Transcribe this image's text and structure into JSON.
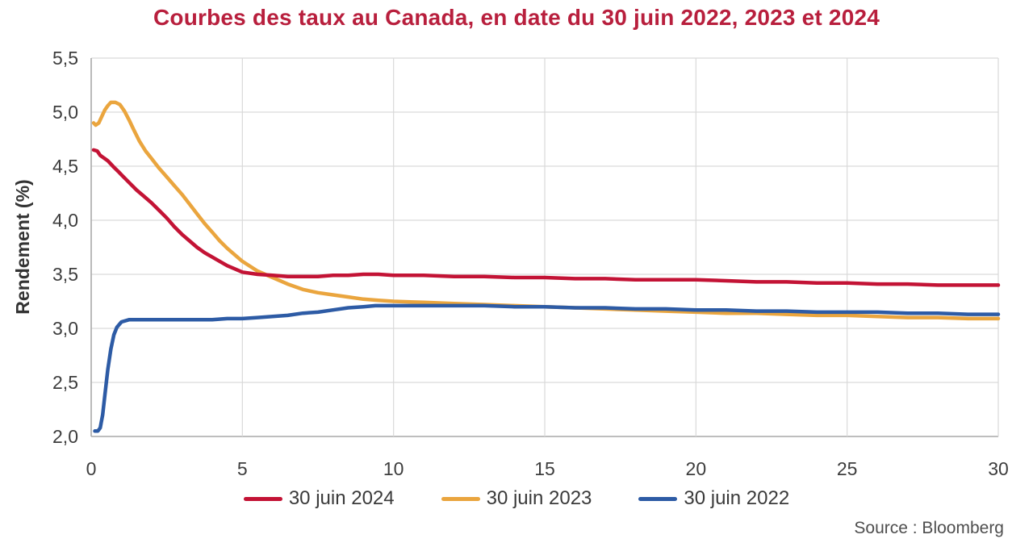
{
  "page": {
    "source": "Source : Bloomberg"
  },
  "chart_data": {
    "type": "line",
    "title": "Courbes des taux au Canada, en date du 30 juin 2022, 2023 et 2024",
    "xlabel": "",
    "ylabel": "Rendement (%)",
    "xlim": [
      0,
      30
    ],
    "ylim": [
      2.0,
      5.5
    ],
    "x_ticks": [
      0,
      5,
      10,
      15,
      20,
      25,
      30
    ],
    "x_tick_labels": [
      "0",
      "5",
      "10",
      "15",
      "20",
      "25",
      "30"
    ],
    "y_ticks": [
      2.0,
      2.5,
      3.0,
      3.5,
      4.0,
      4.5,
      5.0,
      5.5
    ],
    "y_tick_labels": [
      "2,0",
      "2,5",
      "3,0",
      "3,5",
      "4,0",
      "4,5",
      "5,0",
      "5,5"
    ],
    "grid": true,
    "legend_position": "bottom",
    "colors": {
      "title": "#b81f3d",
      "grid": "#d9d9d9",
      "axis": "#a9a9a9",
      "tick_text": "#3d3d3d",
      "axis_title_text": "#333333",
      "legend_text": "#3a3a3a",
      "source_text": "#4e4e4e"
    },
    "series": [
      {
        "name": "30 juin 2024",
        "color": "#c31335",
        "points": [
          [
            0.08,
            4.65
          ],
          [
            0.2,
            4.64
          ],
          [
            0.3,
            4.6
          ],
          [
            0.45,
            4.57
          ],
          [
            0.55,
            4.55
          ],
          [
            0.65,
            4.52
          ],
          [
            0.75,
            4.49
          ],
          [
            0.9,
            4.45
          ],
          [
            1,
            4.42
          ],
          [
            1.25,
            4.35
          ],
          [
            1.5,
            4.28
          ],
          [
            1.75,
            4.22
          ],
          [
            2,
            4.16
          ],
          [
            2.25,
            4.09
          ],
          [
            2.5,
            4.02
          ],
          [
            2.75,
            3.94
          ],
          [
            3,
            3.87
          ],
          [
            3.25,
            3.81
          ],
          [
            3.5,
            3.75
          ],
          [
            3.75,
            3.7
          ],
          [
            4,
            3.66
          ],
          [
            4.25,
            3.62
          ],
          [
            4.5,
            3.58
          ],
          [
            4.75,
            3.55
          ],
          [
            5,
            3.52
          ],
          [
            5.5,
            3.5
          ],
          [
            6,
            3.49
          ],
          [
            6.5,
            3.48
          ],
          [
            7,
            3.48
          ],
          [
            7.5,
            3.48
          ],
          [
            8,
            3.49
          ],
          [
            8.5,
            3.49
          ],
          [
            9,
            3.5
          ],
          [
            9.5,
            3.5
          ],
          [
            10,
            3.49
          ],
          [
            11,
            3.49
          ],
          [
            12,
            3.48
          ],
          [
            13,
            3.48
          ],
          [
            14,
            3.47
          ],
          [
            15,
            3.47
          ],
          [
            16,
            3.46
          ],
          [
            17,
            3.46
          ],
          [
            18,
            3.45
          ],
          [
            19,
            3.45
          ],
          [
            20,
            3.45
          ],
          [
            21,
            3.44
          ],
          [
            22,
            3.43
          ],
          [
            23,
            3.43
          ],
          [
            24,
            3.42
          ],
          [
            25,
            3.42
          ],
          [
            26,
            3.41
          ],
          [
            27,
            3.41
          ],
          [
            28,
            3.4
          ],
          [
            29,
            3.4
          ],
          [
            30,
            3.4
          ]
        ]
      },
      {
        "name": "30 juin 2023",
        "color": "#eaa53e",
        "points": [
          [
            0.08,
            4.9
          ],
          [
            0.15,
            4.88
          ],
          [
            0.25,
            4.9
          ],
          [
            0.35,
            4.96
          ],
          [
            0.45,
            5.02
          ],
          [
            0.55,
            5.06
          ],
          [
            0.65,
            5.09
          ],
          [
            0.8,
            5.09
          ],
          [
            0.95,
            5.07
          ],
          [
            1.1,
            5.01
          ],
          [
            1.25,
            4.93
          ],
          [
            1.4,
            4.84
          ],
          [
            1.6,
            4.73
          ],
          [
            1.8,
            4.64
          ],
          [
            2,
            4.57
          ],
          [
            2.25,
            4.48
          ],
          [
            2.5,
            4.4
          ],
          [
            2.75,
            4.32
          ],
          [
            3,
            4.24
          ],
          [
            3.25,
            4.15
          ],
          [
            3.5,
            4.06
          ],
          [
            3.75,
            3.97
          ],
          [
            4,
            3.89
          ],
          [
            4.25,
            3.81
          ],
          [
            4.5,
            3.74
          ],
          [
            4.75,
            3.68
          ],
          [
            5,
            3.62
          ],
          [
            5.5,
            3.53
          ],
          [
            6,
            3.47
          ],
          [
            6.5,
            3.41
          ],
          [
            7,
            3.36
          ],
          [
            7.5,
            3.33
          ],
          [
            8,
            3.31
          ],
          [
            8.5,
            3.29
          ],
          [
            9,
            3.27
          ],
          [
            9.5,
            3.26
          ],
          [
            10,
            3.25
          ],
          [
            11,
            3.24
          ],
          [
            12,
            3.23
          ],
          [
            13,
            3.22
          ],
          [
            14,
            3.21
          ],
          [
            15,
            3.2
          ],
          [
            16,
            3.19
          ],
          [
            17,
            3.18
          ],
          [
            18,
            3.17
          ],
          [
            19,
            3.16
          ],
          [
            20,
            3.15
          ],
          [
            21,
            3.14
          ],
          [
            22,
            3.14
          ],
          [
            23,
            3.13
          ],
          [
            24,
            3.12
          ],
          [
            25,
            3.12
          ],
          [
            26,
            3.11
          ],
          [
            27,
            3.1
          ],
          [
            28,
            3.1
          ],
          [
            29,
            3.09
          ],
          [
            30,
            3.09
          ]
        ]
      },
      {
        "name": "30 juin 2022",
        "color": "#2d5ba5",
        "points": [
          [
            0.12,
            2.05
          ],
          [
            0.22,
            2.05
          ],
          [
            0.3,
            2.08
          ],
          [
            0.38,
            2.2
          ],
          [
            0.45,
            2.38
          ],
          [
            0.55,
            2.62
          ],
          [
            0.65,
            2.81
          ],
          [
            0.75,
            2.94
          ],
          [
            0.85,
            3.01
          ],
          [
            1,
            3.06
          ],
          [
            1.25,
            3.08
          ],
          [
            1.5,
            3.08
          ],
          [
            2,
            3.08
          ],
          [
            2.5,
            3.08
          ],
          [
            3,
            3.08
          ],
          [
            3.5,
            3.08
          ],
          [
            4,
            3.08
          ],
          [
            4.5,
            3.09
          ],
          [
            5,
            3.09
          ],
          [
            5.5,
            3.1
          ],
          [
            6,
            3.11
          ],
          [
            6.5,
            3.12
          ],
          [
            7,
            3.14
          ],
          [
            7.5,
            3.15
          ],
          [
            8,
            3.17
          ],
          [
            8.5,
            3.19
          ],
          [
            9,
            3.2
          ],
          [
            9.4,
            3.21
          ],
          [
            10,
            3.21
          ],
          [
            11,
            3.21
          ],
          [
            12,
            3.21
          ],
          [
            13,
            3.21
          ],
          [
            14,
            3.2
          ],
          [
            15,
            3.2
          ],
          [
            16,
            3.19
          ],
          [
            17,
            3.19
          ],
          [
            18,
            3.18
          ],
          [
            19,
            3.18
          ],
          [
            20,
            3.17
          ],
          [
            21,
            3.17
          ],
          [
            22,
            3.16
          ],
          [
            23,
            3.16
          ],
          [
            24,
            3.15
          ],
          [
            25,
            3.15
          ],
          [
            26,
            3.15
          ],
          [
            27,
            3.14
          ],
          [
            28,
            3.14
          ],
          [
            29,
            3.13
          ],
          [
            30,
            3.13
          ]
        ]
      }
    ]
  }
}
